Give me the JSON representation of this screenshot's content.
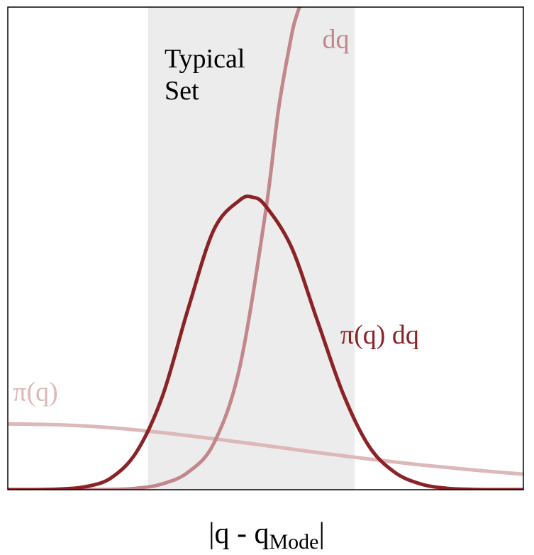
{
  "chart_data": {
    "type": "line",
    "xlabel": {
      "main": "|q - q",
      "subscript": "Mode",
      "suffix": "|"
    },
    "ylabel": "",
    "xlim": [
      0,
      10
    ],
    "ylim": [
      0,
      1.65
    ],
    "grid": false,
    "legend": "none",
    "region": {
      "label_line1": "Typical",
      "label_line2": "Set",
      "x_start": 2.72,
      "x_end": 6.73,
      "color": "#ececec"
    },
    "series": [
      {
        "name": "π(q) dq",
        "color": "#8b2226",
        "x": [
          0,
          0.5,
          1,
          1.5,
          2,
          2.5,
          3,
          3.5,
          4,
          4.5,
          4.75,
          5,
          5.5,
          6,
          6.5,
          7,
          7.5,
          8,
          8.5,
          9,
          9.5,
          10
        ],
        "y": [
          0,
          0,
          0.002,
          0.01,
          0.04,
          0.13,
          0.32,
          0.62,
          0.89,
          0.99,
          1.0,
          0.97,
          0.83,
          0.58,
          0.33,
          0.15,
          0.06,
          0.02,
          0.005,
          0.001,
          0,
          0
        ]
      },
      {
        "name": "dq",
        "color": "#c2878d",
        "x": [
          0,
          1,
          2,
          2.5,
          3,
          3.5,
          4,
          4.5,
          5,
          5.25,
          5.5,
          5.6,
          5.7
        ],
        "y": [
          0,
          0,
          0.001,
          0.005,
          0.02,
          0.06,
          0.16,
          0.42,
          0.95,
          1.3,
          1.55,
          1.62,
          1.67
        ]
      },
      {
        "name": "π(q)",
        "color": "#dcb8b8",
        "x": [
          0,
          1,
          2,
          3,
          4,
          5,
          6,
          7,
          8,
          9,
          10
        ],
        "y": [
          0.225,
          0.222,
          0.212,
          0.195,
          0.174,
          0.151,
          0.127,
          0.105,
          0.085,
          0.068,
          0.053
        ]
      }
    ],
    "annotations": [
      {
        "text": "dq",
        "series": 1,
        "x": 6.1,
        "y": 1.51
      },
      {
        "text": "π(q) dq",
        "series": 0,
        "x": 6.45,
        "y": 0.5
      },
      {
        "text": "π(q)",
        "series": 2,
        "x": 0.1,
        "y": 0.305
      }
    ]
  }
}
